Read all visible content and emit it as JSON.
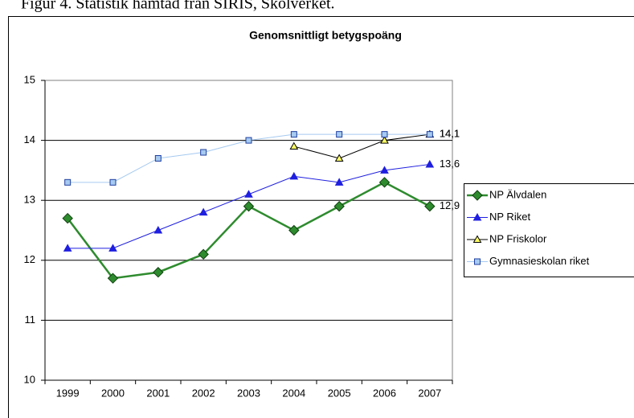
{
  "caption": "Figur 4. Statistik hämtad från SIRIS, Skolverket.",
  "chart_data": {
    "type": "line",
    "title": "Genomsnittligt betygspoäng",
    "categories": [
      "1999",
      "2000",
      "2001",
      "2002",
      "2003",
      "2004",
      "2005",
      "2006",
      "2007"
    ],
    "ylim": [
      10,
      15
    ],
    "yticks": [
      10,
      11,
      12,
      13,
      14,
      15
    ],
    "grid": true,
    "legend": "right",
    "series": [
      {
        "name": "NP Älvdalen",
        "color": "#2e8b2e",
        "marker": "diamond",
        "marker_color": "#2e8b2e",
        "marker_edge": "#0f3f0f",
        "line_width": 2.5,
        "values": [
          12.7,
          11.7,
          11.8,
          12.1,
          12.9,
          12.5,
          12.9,
          13.3,
          12.9
        ],
        "value_labels": [
          null,
          null,
          null,
          null,
          null,
          null,
          null,
          null,
          "12,9"
        ]
      },
      {
        "name": "NP Riket",
        "color": "#1f1fe0",
        "marker": "triangle",
        "marker_color": "#1f1fe0",
        "marker_edge": "#1f1fe0",
        "line_width": 1,
        "values": [
          12.2,
          12.2,
          12.5,
          12.8,
          13.1,
          13.4,
          13.3,
          13.5,
          13.6
        ],
        "value_labels": [
          null,
          null,
          null,
          null,
          null,
          null,
          null,
          null,
          "13,6"
        ]
      },
      {
        "name": "NP Friskolor",
        "color": "#000000",
        "marker": "triangle",
        "marker_color": "#ffff66",
        "marker_edge": "#000000",
        "line_width": 1,
        "values": [
          null,
          null,
          null,
          null,
          null,
          13.9,
          13.7,
          14.0,
          14.1
        ],
        "value_labels": [
          null,
          null,
          null,
          null,
          null,
          null,
          null,
          null,
          "14,1"
        ]
      },
      {
        "name": "Gymnasieskolan riket",
        "color": "#a6caf0",
        "marker": "square",
        "marker_color": "#a6caf0",
        "marker_edge": "#1f3fa0",
        "line_width": 1,
        "values": [
          13.3,
          13.3,
          13.7,
          13.8,
          14.0,
          14.1,
          14.1,
          14.1,
          14.1
        ],
        "value_labels": [
          null,
          null,
          null,
          null,
          null,
          null,
          null,
          null,
          "14,1"
        ]
      }
    ]
  }
}
